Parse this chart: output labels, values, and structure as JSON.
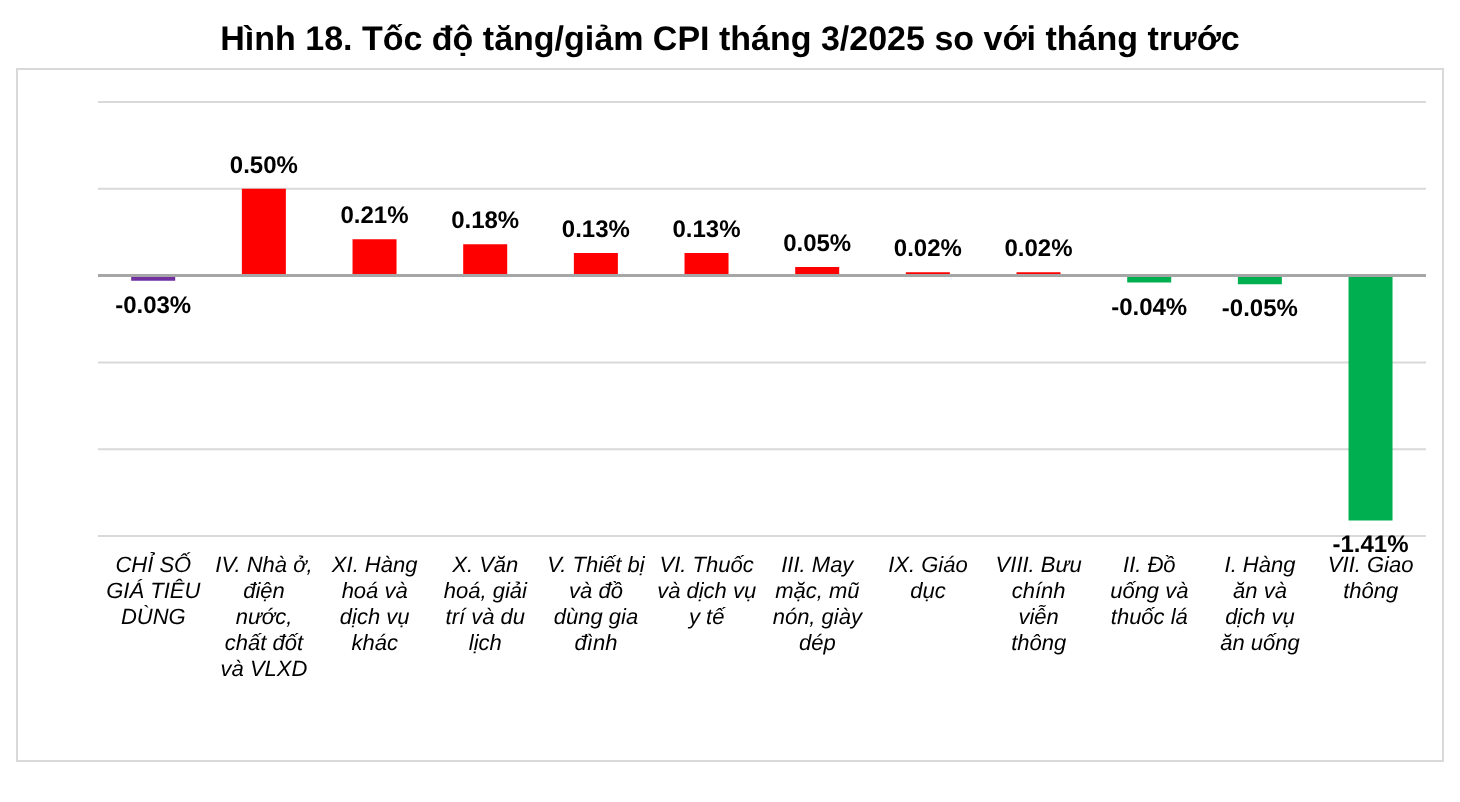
{
  "chart_data": {
    "type": "bar",
    "title": "Hình 18. Tốc độ tăng/giảm CPI tháng 3/2025 so với tháng trước",
    "categories": [
      "CHỈ SỐ GIÁ TIÊU DÙNG",
      "IV. Nhà ở, điện nước, chất đốt và VLXD",
      "XI. Hàng hoá và dịch vụ khác",
      "X. Văn hoá, giải trí và du lịch",
      "V. Thiết bị và đồ dùng gia đình",
      "VI. Thuốc và dịch vụ y tế",
      "III. May mặc, mũ nón, giày dép",
      "IX. Giáo dục",
      "VIII. Bưu chính viễn thông",
      "II. Đồ uống và thuốc lá",
      "I. Hàng ăn và dịch vụ ăn uống",
      "VII. Giao thông"
    ],
    "values": [
      -0.03,
      0.5,
      0.21,
      0.18,
      0.13,
      0.13,
      0.05,
      0.02,
      0.02,
      -0.04,
      -0.05,
      -1.41
    ],
    "value_labels": [
      "-0.03%",
      "0.50%",
      "0.21%",
      "0.18%",
      "0.13%",
      "0.13%",
      "0.05%",
      "0.02%",
      "0.02%",
      "-0.04%",
      "-0.05%",
      "-1.41%"
    ],
    "colors": [
      "#7030a0",
      "#ff0000",
      "#ff0000",
      "#ff0000",
      "#ff0000",
      "#ff0000",
      "#ff0000",
      "#ff0000",
      "#ff0000",
      "#00b050",
      "#00b050",
      "#00b050"
    ],
    "ylim": [
      -1.5,
      1.0
    ],
    "yticks": [
      {
        "value": -1.5,
        "label": null
      },
      {
        "value": -1.0,
        "label": null
      },
      {
        "value": -0.5,
        "label": null
      },
      {
        "value": 0,
        "label": null
      },
      {
        "value": 0.5,
        "label": null
      },
      {
        "value": 1.0,
        "label": null
      }
    ],
    "grid": "y"
  }
}
